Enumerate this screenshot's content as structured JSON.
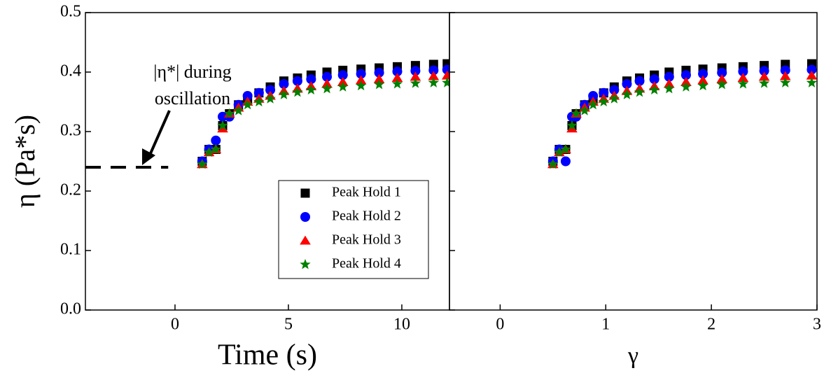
{
  "chart_data": [
    {
      "type": "scatter",
      "xlabel": "Time (s)",
      "ylabel": "η (Pa*s)",
      "xlim": [
        -3.95,
        12.1
      ],
      "ylim": [
        0,
        0.5
      ],
      "xticks": [
        0,
        5,
        10
      ],
      "yticks": [
        {
          "value": 0,
          "label": "0.0"
        },
        0.1,
        0.2,
        0.3,
        0.4,
        0.5
      ],
      "legend": "lower right",
      "annotation": {
        "text": [
          "|η*| during",
          "oscillation"
        ],
        "y": 0.24,
        "x": [
          -3.95,
          -0.3
        ]
      },
      "x": [
        1.2,
        1.5,
        1.8,
        2.1,
        2.4,
        2.8,
        3.2,
        3.7,
        4.2,
        4.8,
        5.4,
        6,
        6.7,
        7.4,
        8.2,
        9,
        9.8,
        10.6,
        11.4,
        12
      ],
      "series": [
        {
          "name": "Peak Hold 1",
          "color": "#000000",
          "marker": "square",
          "values": [
            0.25,
            0.27,
            0.27,
            0.31,
            0.33,
            0.345,
            0.355,
            0.365,
            0.375,
            0.385,
            0.39,
            0.395,
            0.4,
            0.403,
            0.405,
            0.407,
            0.409,
            0.411,
            0.413,
            0.414
          ]
        },
        {
          "name": "Peak Hold 2",
          "color": "#0000ff",
          "marker": "circle",
          "values": [
            0.25,
            0.27,
            0.285,
            0.325,
            0.325,
            0.345,
            0.36,
            0.365,
            0.37,
            0.38,
            0.385,
            0.388,
            0.392,
            0.395,
            0.397,
            0.399,
            0.401,
            0.402,
            0.403,
            0.404
          ]
        },
        {
          "name": "Peak Hold 3",
          "color": "#ff0000",
          "marker": "triangle",
          "values": [
            0.245,
            0.265,
            0.27,
            0.305,
            0.33,
            0.34,
            0.35,
            0.355,
            0.36,
            0.368,
            0.372,
            0.376,
            0.38,
            0.383,
            0.386,
            0.388,
            0.39,
            0.392,
            0.393,
            0.394
          ]
        },
        {
          "name": "Peak Hold 4",
          "color": "#008000",
          "marker": "star",
          "values": [
            0.245,
            0.265,
            0.27,
            0.31,
            0.33,
            0.335,
            0.345,
            0.35,
            0.355,
            0.362,
            0.366,
            0.37,
            0.372,
            0.375,
            0.377,
            0.379,
            0.38,
            0.381,
            0.382,
            0.382
          ]
        }
      ]
    },
    {
      "type": "scatter",
      "xlabel": "γ",
      "xlim": [
        -0.48,
        3
      ],
      "ylim": [
        0,
        0.5
      ],
      "xticks": [
        0,
        1,
        2,
        3
      ],
      "yticks": [
        0,
        0.1,
        0.2,
        0.3,
        0.4,
        0.5
      ],
      "ytick_labels": false,
      "x": [
        0.5,
        0.56,
        0.62,
        0.68,
        0.72,
        0.8,
        0.88,
        0.98,
        1.08,
        1.2,
        1.32,
        1.46,
        1.6,
        1.76,
        1.92,
        2.1,
        2.3,
        2.5,
        2.7,
        2.95
      ],
      "series": [
        {
          "color": "#000000",
          "marker": "square",
          "values": [
            0.25,
            0.27,
            0.27,
            0.31,
            0.33,
            0.345,
            0.355,
            0.365,
            0.375,
            0.385,
            0.39,
            0.395,
            0.4,
            0.403,
            0.405,
            0.407,
            0.409,
            0.411,
            0.413,
            0.414
          ]
        },
        {
          "color": "#0000ff",
          "marker": "circle",
          "values": [
            0.25,
            0.27,
            0.25,
            0.325,
            0.325,
            0.345,
            0.36,
            0.365,
            0.37,
            0.38,
            0.385,
            0.388,
            0.392,
            0.395,
            0.397,
            0.399,
            0.401,
            0.402,
            0.403,
            0.404
          ]
        },
        {
          "color": "#ff0000",
          "marker": "triangle",
          "values": [
            0.245,
            0.265,
            0.27,
            0.305,
            0.33,
            0.34,
            0.35,
            0.355,
            0.36,
            0.368,
            0.372,
            0.376,
            0.38,
            0.383,
            0.386,
            0.388,
            0.39,
            0.392,
            0.393,
            0.394
          ]
        },
        {
          "color": "#008000",
          "marker": "star",
          "values": [
            0.245,
            0.265,
            0.27,
            0.31,
            0.33,
            0.335,
            0.345,
            0.35,
            0.355,
            0.362,
            0.366,
            0.37,
            0.372,
            0.375,
            0.377,
            0.379,
            0.38,
            0.381,
            0.382,
            0.382
          ]
        }
      ]
    }
  ]
}
